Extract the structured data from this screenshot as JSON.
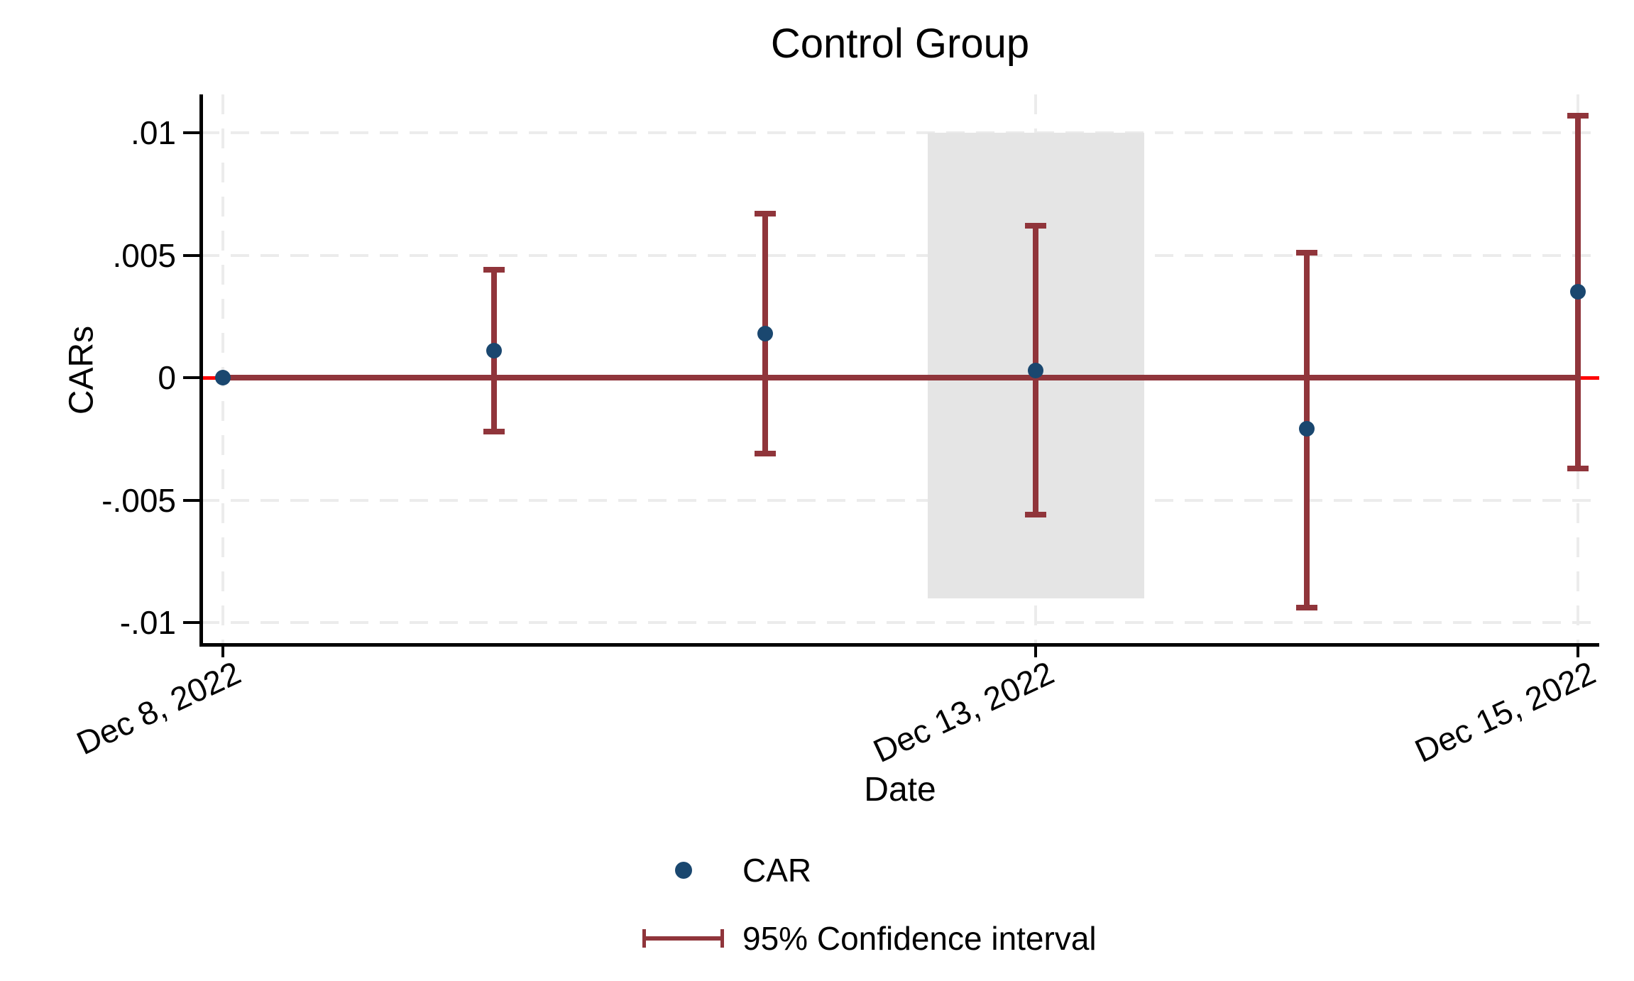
{
  "title": "Control Group",
  "y_axis": {
    "label": "CARs",
    "ticks": [
      {
        "label": ".01",
        "value": 0.01
      },
      {
        "label": ".005",
        "value": 0.005
      },
      {
        "label": "0",
        "value": 0
      },
      {
        "label": "-.005",
        "value": -0.005
      },
      {
        "label": "-.01",
        "value": -0.01
      }
    ]
  },
  "x_axis": {
    "label": "Date",
    "ticks": [
      {
        "label": "Dec 8, 2022",
        "index": 0
      },
      {
        "label": "Dec 13, 2022",
        "index": 3
      },
      {
        "label": "Dec 15, 2022",
        "index": 5
      }
    ]
  },
  "legend": {
    "entries": [
      {
        "label": "CAR",
        "symbol": "dot"
      },
      {
        "label": "95% Confidence interval",
        "symbol": "errorbar"
      }
    ]
  },
  "colors": {
    "car_dot": "#1a476f",
    "confidence_interval": "#90353b",
    "zero_reference_line": "#ff0000",
    "event_window_shade": "#e5e5e5",
    "gridline": "#ececec"
  },
  "chart_data": {
    "type": "scatter",
    "title": "Control Group",
    "xlabel": "Date",
    "ylabel": "CARs",
    "ylim": [
      -0.0109,
      0.0116
    ],
    "grid": "dashed horizontal and vertical at labeled ticks",
    "legend_position": "bottom center",
    "x_tick_labels": [
      "Dec 8, 2022",
      "Dec 13, 2022",
      "Dec 15, 2022"
    ],
    "x_tick_indices": [
      0,
      3,
      5
    ],
    "series": [
      {
        "name": "CAR",
        "points": [
          {
            "x_index": 0,
            "car": 0.0,
            "ci_low": 0.0,
            "ci_high": 0.0
          },
          {
            "x_index": 1,
            "car": 0.0011,
            "ci_low": -0.0022,
            "ci_high": 0.0044
          },
          {
            "x_index": 2,
            "car": 0.0018,
            "ci_low": -0.0031,
            "ci_high": 0.0067
          },
          {
            "x_index": 3,
            "car": 0.0003,
            "ci_low": -0.0056,
            "ci_high": 0.0062
          },
          {
            "x_index": 4,
            "car": -0.0021,
            "ci_low": -0.0094,
            "ci_high": 0.0051
          },
          {
            "x_index": 5,
            "car": 0.0035,
            "ci_low": -0.0037,
            "ci_high": 0.0107
          }
        ]
      }
    ],
    "shaded_region": {
      "x_index_start": 2.6,
      "x_index_end": 3.4,
      "y_top": 0.01,
      "y_bottom": -0.009
    },
    "reference_line_y": 0,
    "baseline_segment": {
      "y": 0,
      "x_index_start": 0,
      "x_index_end": 5
    }
  }
}
